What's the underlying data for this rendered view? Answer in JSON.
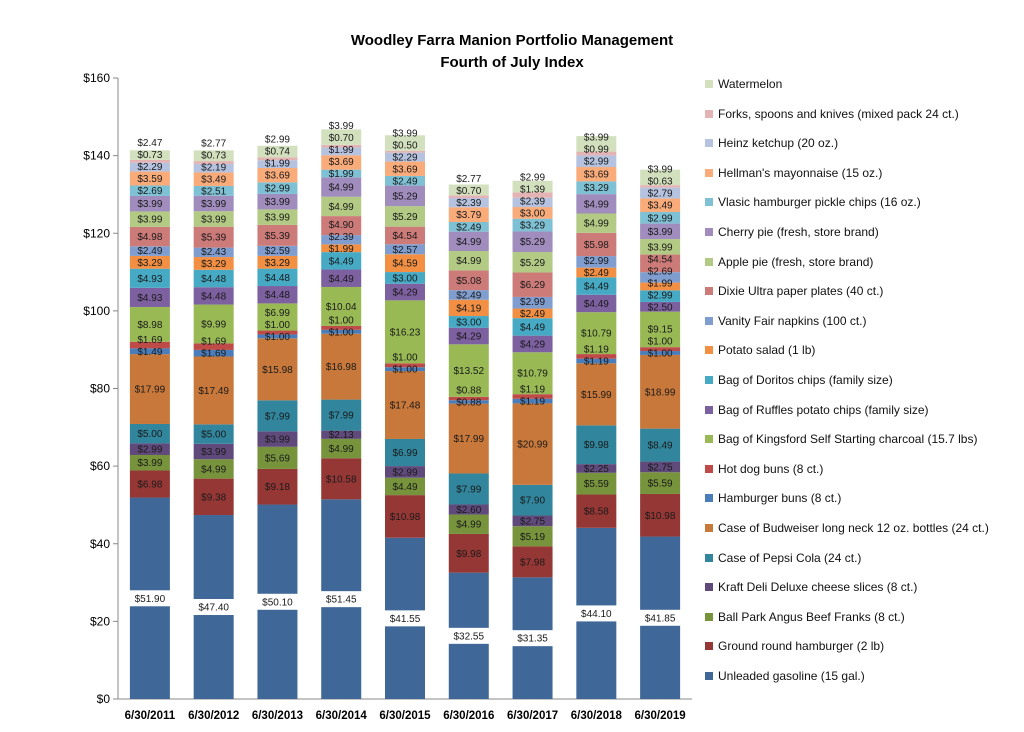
{
  "chart_data": {
    "type": "bar",
    "stacked": true,
    "title": "Woodley Farra Manion Portfolio Management",
    "subtitle": "Fourth of July Index",
    "xlabel": "",
    "ylabel": "",
    "ylim": [
      0,
      160
    ],
    "yticks": [
      "$0",
      "$20",
      "$40",
      "$60",
      "$80",
      "$100",
      "$120",
      "$140",
      "$160"
    ],
    "grid": false,
    "legend_position": "right",
    "categories": [
      "6/30/2011",
      "6/30/2012",
      "6/30/2013",
      "6/30/2014",
      "6/30/2015",
      "6/30/2016",
      "6/30/2017",
      "6/30/2018",
      "6/30/2019"
    ],
    "series": [
      {
        "name": "Unleaded gasoline (15 gal.)",
        "color": "#3F6797",
        "values": [
          51.9,
          47.4,
          50.1,
          51.45,
          41.55,
          32.55,
          31.35,
          44.1,
          41.85
        ]
      },
      {
        "name": "Ground round hamburger (2 lb)",
        "color": "#953735",
        "values": [
          6.98,
          9.38,
          9.18,
          10.58,
          10.98,
          9.98,
          7.98,
          8.58,
          10.98
        ]
      },
      {
        "name": "Ball Park Angus Beef Franks (8 ct.)",
        "color": "#77933C",
        "values": [
          3.99,
          4.99,
          5.69,
          4.99,
          4.49,
          4.99,
          5.19,
          5.59,
          5.59
        ]
      },
      {
        "name": "Kraft Deli Deluxe cheese slices (8 ct.)",
        "color": "#604A7B",
        "values": [
          2.99,
          3.99,
          3.99,
          2.13,
          2.99,
          2.6,
          2.75,
          2.25,
          2.75
        ]
      },
      {
        "name": "Case of Pepsi Cola (24 ct.)",
        "color": "#31859C",
        "values": [
          5.0,
          5.0,
          7.99,
          7.99,
          6.99,
          7.99,
          7.9,
          9.98,
          8.49
        ]
      },
      {
        "name": "Case of Budweiser long neck 12 oz. bottles (24 ct.)",
        "color": "#C8783A",
        "values": [
          17.99,
          17.49,
          15.98,
          16.98,
          17.48,
          17.99,
          20.99,
          15.99,
          18.99
        ]
      },
      {
        "name": "Hamburger buns (8 ct.)",
        "color": "#4A7EBB",
        "values": [
          1.49,
          1.69,
          1.0,
          1.0,
          1.0,
          0.88,
          1.19,
          1.19,
          1.0
        ]
      },
      {
        "name": "Hot dog buns (8 ct.)",
        "color": "#BE4B48",
        "values": [
          1.69,
          1.69,
          1.0,
          1.0,
          1.0,
          0.88,
          1.19,
          1.19,
          1.0
        ]
      },
      {
        "name": "Bag of Kingsford Self Starting charcoal (15.7 lbs)",
        "color": "#98B954",
        "values": [
          8.98,
          9.99,
          6.99,
          10.04,
          16.23,
          13.52,
          10.79,
          10.79,
          9.15
        ]
      },
      {
        "name": "Bag of Ruffles potato chips (family size)",
        "color": "#7D60A0",
        "values": [
          4.93,
          4.48,
          4.48,
          4.49,
          4.29,
          4.29,
          4.29,
          4.49,
          2.5
        ]
      },
      {
        "name": "Bag of Doritos chips (family size)",
        "color": "#46AAC5",
        "values": [
          4.93,
          4.48,
          4.48,
          4.49,
          3.0,
          3.0,
          4.49,
          4.49,
          2.99
        ]
      },
      {
        "name": "Potato salad (1 lb)",
        "color": "#F28F43",
        "values": [
          3.29,
          3.29,
          3.29,
          1.99,
          4.59,
          4.19,
          2.49,
          2.49,
          1.99
        ]
      },
      {
        "name": "Vanity Fair napkins (100 ct.)",
        "color": "#7F9DCF",
        "values": [
          2.49,
          2.43,
          2.59,
          2.39,
          2.57,
          2.49,
          2.99,
          2.99,
          2.69
        ]
      },
      {
        "name": "Dixie Ultra paper plates (40 ct.)",
        "color": "#CD7B79",
        "values": [
          4.98,
          5.39,
          5.39,
          4.9,
          4.54,
          5.08,
          6.29,
          5.98,
          4.54
        ]
      },
      {
        "name": "Apple pie (fresh, store brand)",
        "color": "#B2CA84",
        "values": [
          3.99,
          3.99,
          3.99,
          4.99,
          5.29,
          4.99,
          5.29,
          4.99,
          3.99
        ]
      },
      {
        "name": "Cherry pie (fresh, store brand)",
        "color": "#A08CBD",
        "values": [
          3.99,
          3.99,
          3.99,
          4.99,
          5.29,
          4.99,
          5.29,
          4.99,
          3.99
        ]
      },
      {
        "name": "Vlasic hamburger pickle chips (16 oz.)",
        "color": "#7EC1D4",
        "values": [
          2.69,
          2.51,
          2.99,
          1.99,
          2.49,
          2.49,
          3.29,
          3.29,
          2.99
        ]
      },
      {
        "name": "Hellman's mayonnaise (15 oz.)",
        "color": "#F9AB7A",
        "values": [
          3.59,
          3.49,
          3.69,
          3.69,
          3.69,
          3.79,
          3.0,
          3.69,
          3.49
        ]
      },
      {
        "name": "Heinz ketchup (20 oz.)",
        "color": "#B5C3E0",
        "values": [
          2.29,
          2.19,
          1.99,
          1.99,
          2.29,
          2.39,
          2.39,
          2.99,
          2.79
        ]
      },
      {
        "name": "Forks, spoons and knives (mixed pack 24 ct.)",
        "color": "#E4B3B3",
        "values": [
          0.73,
          0.73,
          0.74,
          0.7,
          0.5,
          0.7,
          1.39,
          0.99,
          0.63
        ]
      },
      {
        "name": "Watermelon",
        "color": "#D3E0BE",
        "values": [
          2.47,
          2.77,
          2.99,
          3.99,
          3.99,
          2.77,
          2.99,
          3.99,
          3.99
        ]
      }
    ]
  }
}
